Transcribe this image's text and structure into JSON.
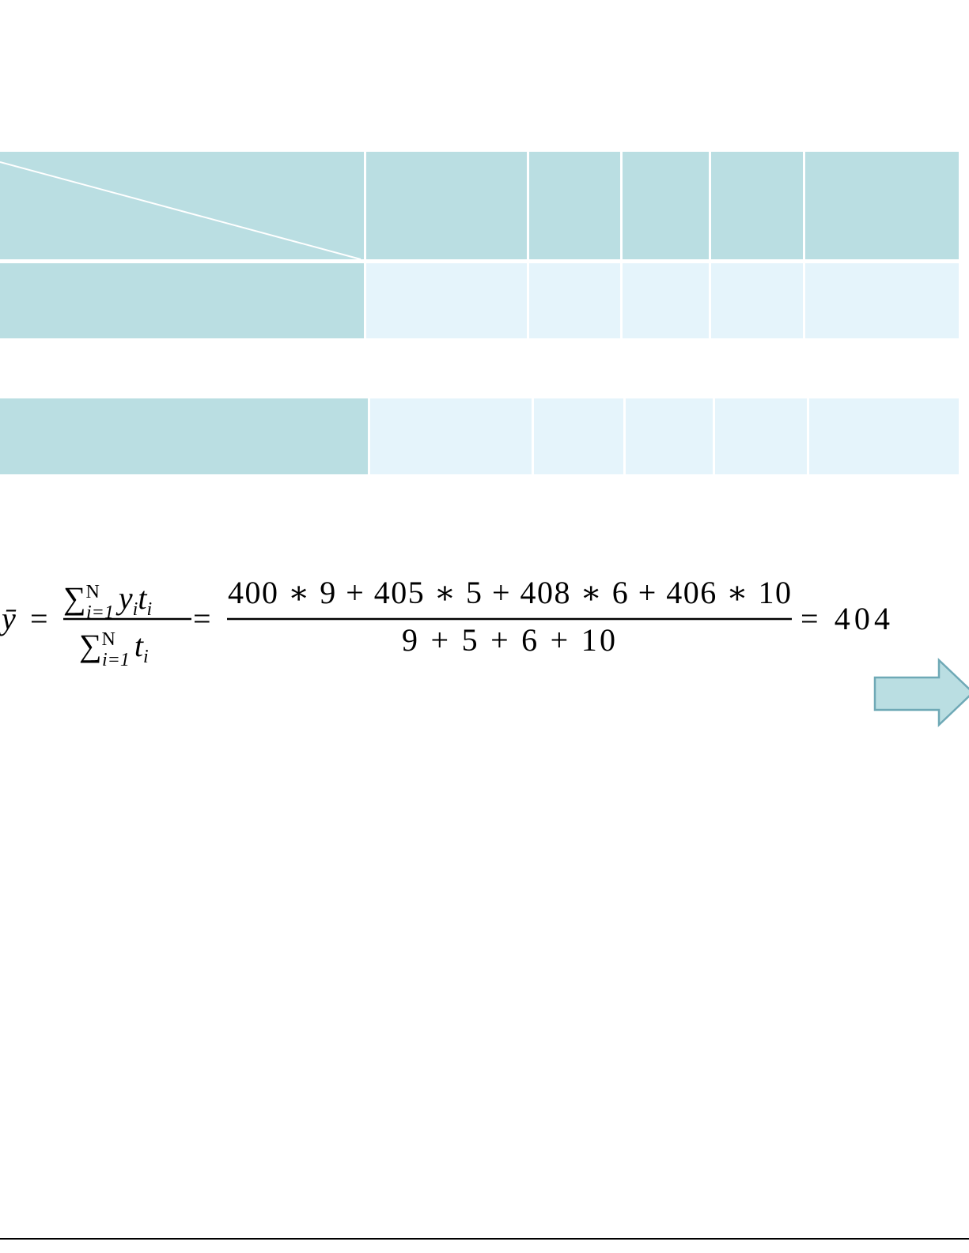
{
  "formula": {
    "lhs": "ȳ",
    "equals": "=",
    "numerator_sum": {
      "symbol": "∑",
      "sup": "N",
      "sub": "i=1",
      "body": "y",
      "body_sub": "i",
      "body2": "t",
      "body2_sub": "i"
    },
    "denominator_sum": {
      "symbol": "∑",
      "sup": "N",
      "sub": "i=1",
      "body": "t",
      "body_sub": "i"
    },
    "expanded_numerator": "400 ∗ 9 + 405 ∗ 5 + 408 ∗ 6 + 406 ∗ 10",
    "expanded_denominator": "9 + 5 + 6 + 10",
    "result": "= 404"
  }
}
